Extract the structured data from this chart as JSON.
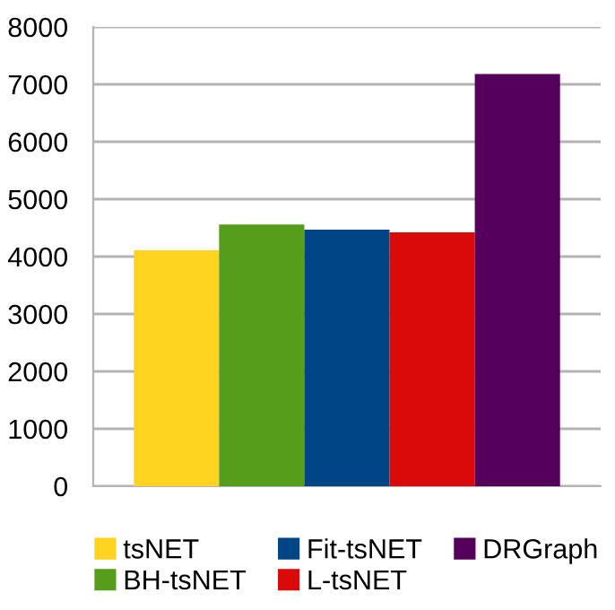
{
  "chart_data": {
    "type": "bar",
    "categories": [
      null
    ],
    "series": [
      {
        "name": "tsNET",
        "color": "#ffd320",
        "values": [
          4110
        ]
      },
      {
        "name": "BH-tsNET",
        "color": "#579d1c",
        "values": [
          4560
        ]
      },
      {
        "name": "Fit-tsNET",
        "color": "#004586",
        "values": [
          4470
        ]
      },
      {
        "name": "L-tsNET",
        "color": "#d80a0a",
        "values": [
          4420
        ]
      },
      {
        "name": "DRGraph",
        "color": "#55005a",
        "values": [
          7180
        ]
      }
    ],
    "ylim": [
      0,
      8000
    ],
    "yticks": [
      0,
      1000,
      2000,
      3000,
      4000,
      5000,
      6000,
      7000,
      8000
    ],
    "grid": "y",
    "legend": "bottom"
  }
}
